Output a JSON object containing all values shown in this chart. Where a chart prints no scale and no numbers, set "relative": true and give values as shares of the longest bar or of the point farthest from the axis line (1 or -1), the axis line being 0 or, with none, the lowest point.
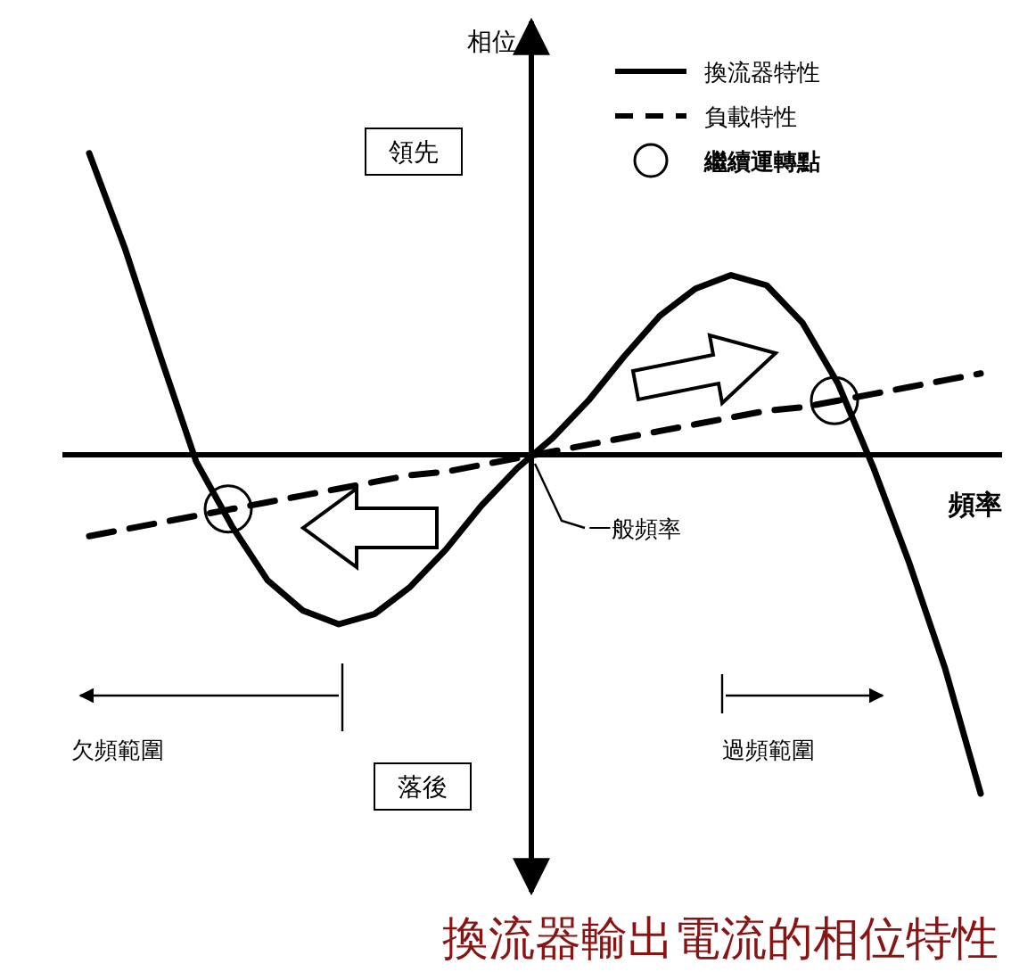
{
  "chart_data": {
    "type": "line",
    "relative": true,
    "title": "換流器輸出電流的相位特性",
    "xlabel": "頻率",
    "ylabel": "相位",
    "legend": "top right",
    "categories": [
      null,
      null,
      null,
      null,
      null,
      null,
      null,
      null,
      null,
      null,
      null,
      null,
      null,
      null,
      null,
      null,
      null,
      null,
      null,
      null,
      null,
      null,
      null,
      null,
      null,
      null
    ],
    "series": [
      {
        "name": "換流器特性",
        "color": "#000000",
        "line_style": "solid",
        "values": [
          0.89,
          0.61,
          0.29,
          -0.02,
          -0.21,
          -0.37,
          -0.46,
          -0.5,
          -0.47,
          -0.39,
          -0.28,
          -0.15,
          -0.04,
          0.05,
          0.16,
          0.29,
          0.41,
          0.49,
          0.53,
          0.5,
          0.39,
          0.21,
          -0.04,
          -0.32,
          -0.63,
          -1
        ]
      },
      {
        "name": "負載特性",
        "color": "#000000",
        "line_style": "dashed",
        "values": [
          -0.24,
          -0.22,
          -0.2,
          -0.18,
          -0.16,
          -0.14,
          -0.12,
          -0.1,
          -0.08,
          -0.06,
          -0.05,
          -0.03,
          -0.01,
          0.01,
          0.03,
          0.05,
          0.07,
          0.09,
          0.11,
          0.13,
          0.14,
          0.16,
          0.18,
          0.2,
          0.22,
          0.24
        ]
      }
    ],
    "annotations": [
      "領先",
      "落後",
      "一般頻率",
      "欠頻範圍",
      "過頻範圍",
      "繼續運轉點"
    ]
  }
}
